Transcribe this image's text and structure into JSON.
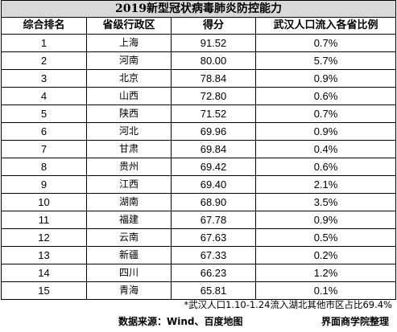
{
  "title": "2019新型冠状病毒肺炎防控能力",
  "columns": [
    "综合排名",
    "省级行政区",
    "得分",
    "武汉人口流入各省比例"
  ],
  "rows": [
    {
      "rank": "1",
      "province": "上海",
      "score": "91.52",
      "ratio": "0.7%"
    },
    {
      "rank": "2",
      "province": "河南",
      "score": "80.00",
      "ratio": "5.7%"
    },
    {
      "rank": "3",
      "province": "北京",
      "score": "78.84",
      "ratio": "0.9%"
    },
    {
      "rank": "4",
      "province": "山西",
      "score": "72.80",
      "ratio": "0.6%"
    },
    {
      "rank": "5",
      "province": "陕西",
      "score": "71.52",
      "ratio": "0.7%"
    },
    {
      "rank": "6",
      "province": "河北",
      "score": "69.96",
      "ratio": "0.9%"
    },
    {
      "rank": "7",
      "province": "甘肃",
      "score": "69.84",
      "ratio": "0.4%"
    },
    {
      "rank": "8",
      "province": "贵州",
      "score": "69.42",
      "ratio": "0.6%"
    },
    {
      "rank": "9",
      "province": "江西",
      "score": "69.40",
      "ratio": "2.1%"
    },
    {
      "rank": "10",
      "province": "湖南",
      "score": "68.90",
      "ratio": "3.5%"
    },
    {
      "rank": "11",
      "province": "福建",
      "score": "67.78",
      "ratio": "0.9%"
    },
    {
      "rank": "12",
      "province": "云南",
      "score": "67.63",
      "ratio": "0.5%"
    },
    {
      "rank": "13",
      "province": "新疆",
      "score": "67.33",
      "ratio": "0.2%"
    },
    {
      "rank": "14",
      "province": "四川",
      "score": "66.23",
      "ratio": "1.2%"
    },
    {
      "rank": "15",
      "province": "青海",
      "score": "65.81",
      "ratio": "0.1%"
    }
  ],
  "note": "*武汉人口1.10-1.24流入湖北其他市区占比69.4%",
  "source": "数据来源：Wind、百度地图",
  "credit": "界面商学院整理"
}
